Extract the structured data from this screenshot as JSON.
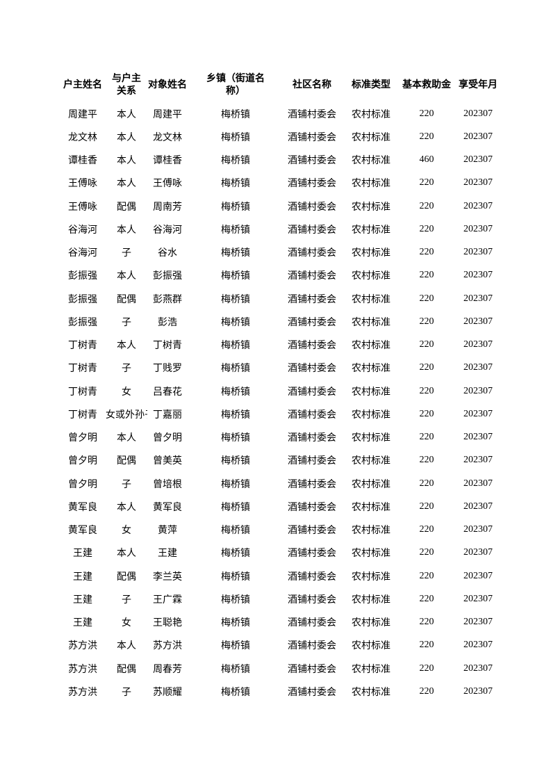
{
  "page": {
    "background_color": "#ffffff",
    "text_color": "#000000"
  },
  "table": {
    "columns": [
      "户主姓名",
      "与户主\n关系",
      "对象姓名",
      "乡镇（街道名\n称）",
      "社区名称",
      "标准类型",
      "基本救助金",
      "享受年月"
    ],
    "rows": [
      [
        "周建平",
        "本人",
        "周建平",
        "梅桥镇",
        "酒铺村委会",
        "农村标准",
        "220",
        "202307"
      ],
      [
        "龙文林",
        "本人",
        "龙文林",
        "梅桥镇",
        "酒铺村委会",
        "农村标准",
        "220",
        "202307"
      ],
      [
        "谭桂香",
        "本人",
        "谭桂香",
        "梅桥镇",
        "酒铺村委会",
        "农村标准",
        "460",
        "202307"
      ],
      [
        "王傅咏",
        "本人",
        "王傅咏",
        "梅桥镇",
        "酒铺村委会",
        "农村标准",
        "220",
        "202307"
      ],
      [
        "王傅咏",
        "配偶",
        "周南芳",
        "梅桥镇",
        "酒铺村委会",
        "农村标准",
        "220",
        "202307"
      ],
      [
        "谷海河",
        "本人",
        "谷海河",
        "梅桥镇",
        "酒铺村委会",
        "农村标准",
        "220",
        "202307"
      ],
      [
        "谷海河",
        "子",
        "谷水",
        "梅桥镇",
        "酒铺村委会",
        "农村标准",
        "220",
        "202307"
      ],
      [
        "彭振强",
        "本人",
        "彭振强",
        "梅桥镇",
        "酒铺村委会",
        "农村标准",
        "220",
        "202307"
      ],
      [
        "彭振强",
        "配偶",
        "彭燕群",
        "梅桥镇",
        "酒铺村委会",
        "农村标准",
        "220",
        "202307"
      ],
      [
        "彭振强",
        "子",
        "彭浩",
        "梅桥镇",
        "酒铺村委会",
        "农村标准",
        "220",
        "202307"
      ],
      [
        "丁树青",
        "本人",
        "丁树青",
        "梅桥镇",
        "酒铺村委会",
        "农村标准",
        "220",
        "202307"
      ],
      [
        "丁树青",
        "子",
        "丁贱罗",
        "梅桥镇",
        "酒铺村委会",
        "农村标准",
        "220",
        "202307"
      ],
      [
        "丁树青",
        "女",
        "吕春花",
        "梅桥镇",
        "酒铺村委会",
        "农村标准",
        "220",
        "202307"
      ],
      [
        "丁树青",
        "女或外孙子",
        "丁嘉丽",
        "梅桥镇",
        "酒铺村委会",
        "农村标准",
        "220",
        "202307"
      ],
      [
        "曾夕明",
        "本人",
        "曾夕明",
        "梅桥镇",
        "酒铺村委会",
        "农村标准",
        "220",
        "202307"
      ],
      [
        "曾夕明",
        "配偶",
        "曾美英",
        "梅桥镇",
        "酒铺村委会",
        "农村标准",
        "220",
        "202307"
      ],
      [
        "曾夕明",
        "子",
        "曾培根",
        "梅桥镇",
        "酒铺村委会",
        "农村标准",
        "220",
        "202307"
      ],
      [
        "黄军良",
        "本人",
        "黄军良",
        "梅桥镇",
        "酒铺村委会",
        "农村标准",
        "220",
        "202307"
      ],
      [
        "黄军良",
        "女",
        "黄萍",
        "梅桥镇",
        "酒铺村委会",
        "农村标准",
        "220",
        "202307"
      ],
      [
        "王建",
        "本人",
        "王建",
        "梅桥镇",
        "酒铺村委会",
        "农村标准",
        "220",
        "202307"
      ],
      [
        "王建",
        "配偶",
        "李兰英",
        "梅桥镇",
        "酒铺村委会",
        "农村标准",
        "220",
        "202307"
      ],
      [
        "王建",
        "子",
        "王广霖",
        "梅桥镇",
        "酒铺村委会",
        "农村标准",
        "220",
        "202307"
      ],
      [
        "王建",
        "女",
        "王聪艳",
        "梅桥镇",
        "酒铺村委会",
        "农村标准",
        "220",
        "202307"
      ],
      [
        "苏方洪",
        "本人",
        "苏方洪",
        "梅桥镇",
        "酒铺村委会",
        "农村标准",
        "220",
        "202307"
      ],
      [
        "苏方洪",
        "配偶",
        "周春芳",
        "梅桥镇",
        "酒铺村委会",
        "农村标准",
        "220",
        "202307"
      ],
      [
        "苏方洪",
        "子",
        "苏顺耀",
        "梅桥镇",
        "酒铺村委会",
        "农村标准",
        "220",
        "202307"
      ]
    ]
  }
}
